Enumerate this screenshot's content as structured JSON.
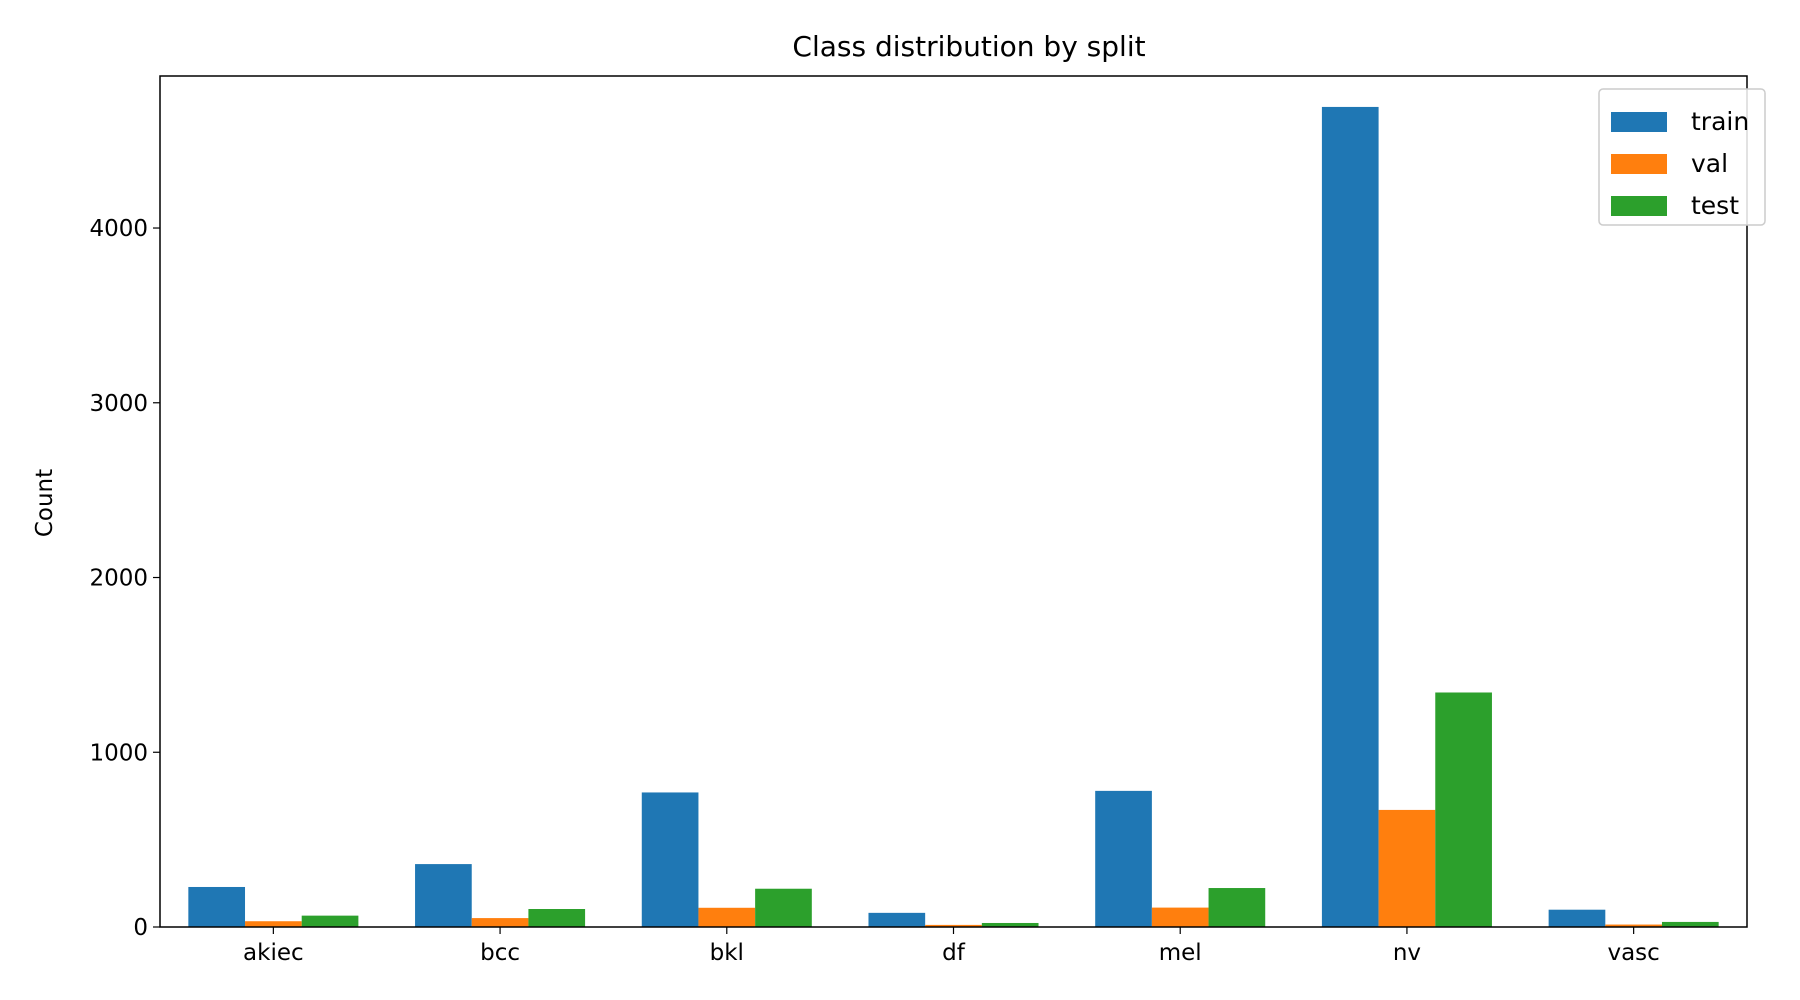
{
  "chart_data": {
    "type": "bar",
    "title": "Class distribution by split",
    "xlabel": "",
    "ylabel": "Count",
    "categories": [
      "akiec",
      "bcc",
      "bkl",
      "df",
      "mel",
      "nv",
      "vasc"
    ],
    "series": [
      {
        "name": "train",
        "color": "#1f77b4",
        "values": [
          229,
          360,
          770,
          81,
          779,
          4693,
          99
        ]
      },
      {
        "name": "val",
        "color": "#ff7f0e",
        "values": [
          33,
          51,
          110,
          12,
          111,
          670,
          14
        ]
      },
      {
        "name": "test",
        "color": "#2ca02c",
        "values": [
          65,
          103,
          219,
          23,
          223,
          1342,
          29
        ]
      }
    ],
    "ylim": [
      0,
      4870
    ],
    "yticks": [
      0,
      1000,
      2000,
      3000,
      4000
    ],
    "grid": false,
    "legend_position": "top-right"
  }
}
